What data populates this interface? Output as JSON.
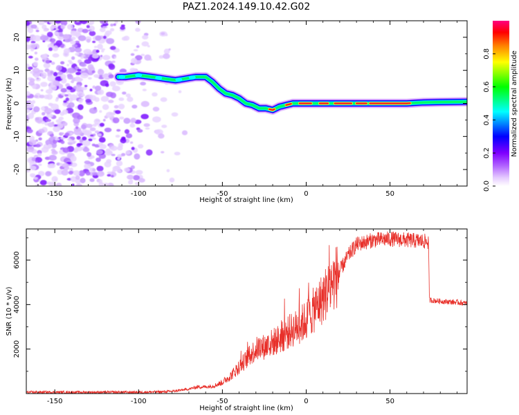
{
  "title": "PAZ1.2024.149.10.42.G02",
  "chart_data": [
    {
      "type": "heatmap",
      "xlabel": "Height of straight line (km)",
      "ylabel": "Frequency (Hz)",
      "xlim": [
        -167,
        96
      ],
      "ylim": [
        -25,
        25
      ],
      "xticks": [
        -150,
        -100,
        -50,
        0,
        50
      ],
      "yticks": [
        -20,
        -10,
        0,
        10,
        20
      ],
      "colorbar": {
        "label": "Normalized spectral amplitude",
        "range": [
          0,
          1
        ],
        "ticks": [
          0.0,
          0.2,
          0.4,
          0.6,
          0.8
        ],
        "colormap": [
          "#ffffff",
          "#e6ccff",
          "#7f00ff",
          "#0000ff",
          "#00ffff",
          "#00ff00",
          "#ffff00",
          "#ff7f00",
          "#ff0000",
          "#ff0080"
        ]
      },
      "ridge": {
        "x": [
          -112,
          -108,
          -100,
          -92,
          -85,
          -78,
          -72,
          -66,
          -60,
          -56,
          -52,
          -48,
          -44,
          -40,
          -36,
          -32,
          -28,
          -24,
          -20,
          -16,
          -12,
          -8,
          -4,
          0,
          10,
          20,
          30,
          40,
          50,
          60,
          70,
          80,
          96
        ],
        "y": [
          8,
          8,
          8.5,
          8,
          7.5,
          7,
          7.5,
          8,
          8,
          6.5,
          4.5,
          3,
          2.5,
          1.5,
          0,
          -0.5,
          -1.5,
          -1.5,
          -2,
          -1,
          -0.5,
          0,
          0,
          0,
          0,
          0,
          0,
          0,
          0,
          0,
          0.3,
          0.4,
          0.5
        ]
      }
    },
    {
      "type": "line",
      "xlabel": "Height of straight line (km)",
      "ylabel": "SNR (10 * v/v)",
      "xlim": [
        -167,
        96
      ],
      "ylim": [
        0,
        7400
      ],
      "xticks": [
        -150,
        -100,
        -50,
        0,
        50
      ],
      "yticks": [
        2000,
        4000,
        6000
      ],
      "color": "#e8302a",
      "profile": {
        "x": [
          -167,
          -100,
          -85,
          -80,
          -75,
          -70,
          -65,
          -60,
          -55,
          -50,
          -45,
          -40,
          -35,
          -30,
          -25,
          -20,
          -15,
          -10,
          -5,
          0,
          5,
          10,
          15,
          20,
          25,
          30,
          40,
          50,
          60,
          70,
          73,
          73.5,
          80,
          90,
          96
        ],
        "y": [
          60,
          60,
          80,
          100,
          150,
          200,
          300,
          300,
          350,
          500,
          800,
          1200,
          1600,
          2000,
          2100,
          2300,
          2500,
          2800,
          3000,
          3300,
          3800,
          4300,
          4900,
          5500,
          6200,
          6700,
          6900,
          6950,
          6900,
          6850,
          6800,
          4200,
          4150,
          4100,
          4050
        ]
      }
    }
  ]
}
